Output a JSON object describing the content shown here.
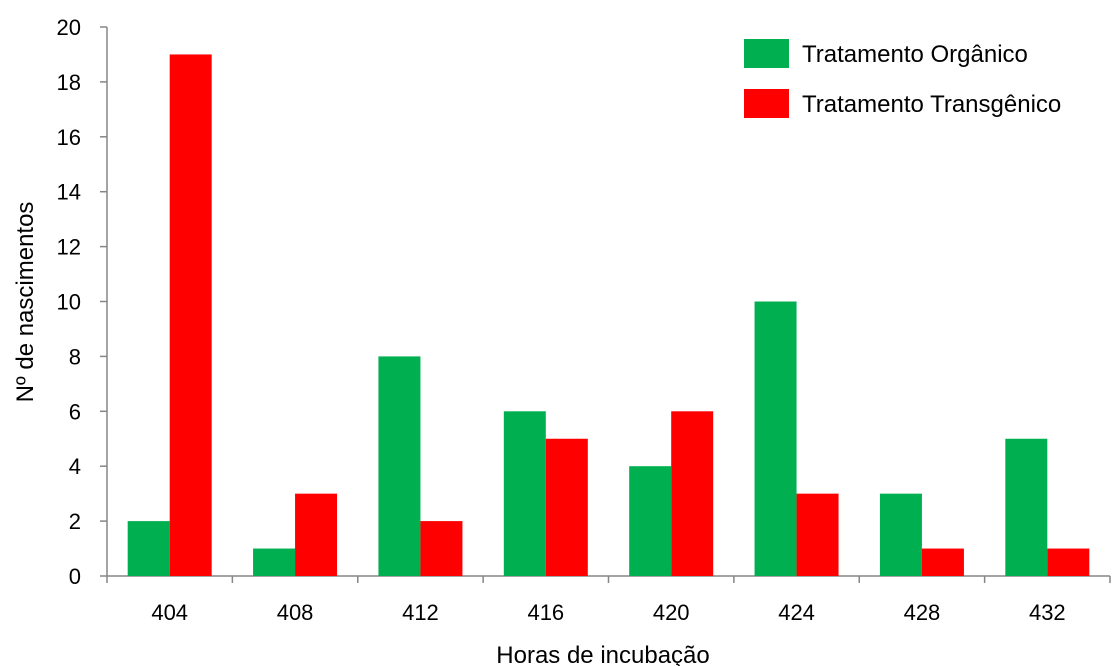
{
  "chart_data": {
    "type": "bar",
    "categories": [
      "404",
      "408",
      "412",
      "416",
      "420",
      "424",
      "428",
      "432"
    ],
    "series": [
      {
        "name": "Tratamento Orgânico",
        "color": "#00B050",
        "values": [
          2,
          1,
          8,
          6,
          4,
          10,
          3,
          5
        ]
      },
      {
        "name": "Tratamento Transgênico",
        "color": "#FF0000",
        "values": [
          19,
          3,
          2,
          5,
          6,
          3,
          1,
          1
        ]
      }
    ],
    "title": "",
    "xlabel": "Horas de incubação",
    "ylabel": "Nº de nascimentos",
    "ylim": [
      0,
      20
    ],
    "yticks": [
      "0",
      "2",
      "4",
      "6",
      "8",
      "10",
      "12",
      "14",
      "16",
      "18",
      "20"
    ],
    "grid": false,
    "legend_position": "top-right",
    "axis_color": "#868686"
  }
}
